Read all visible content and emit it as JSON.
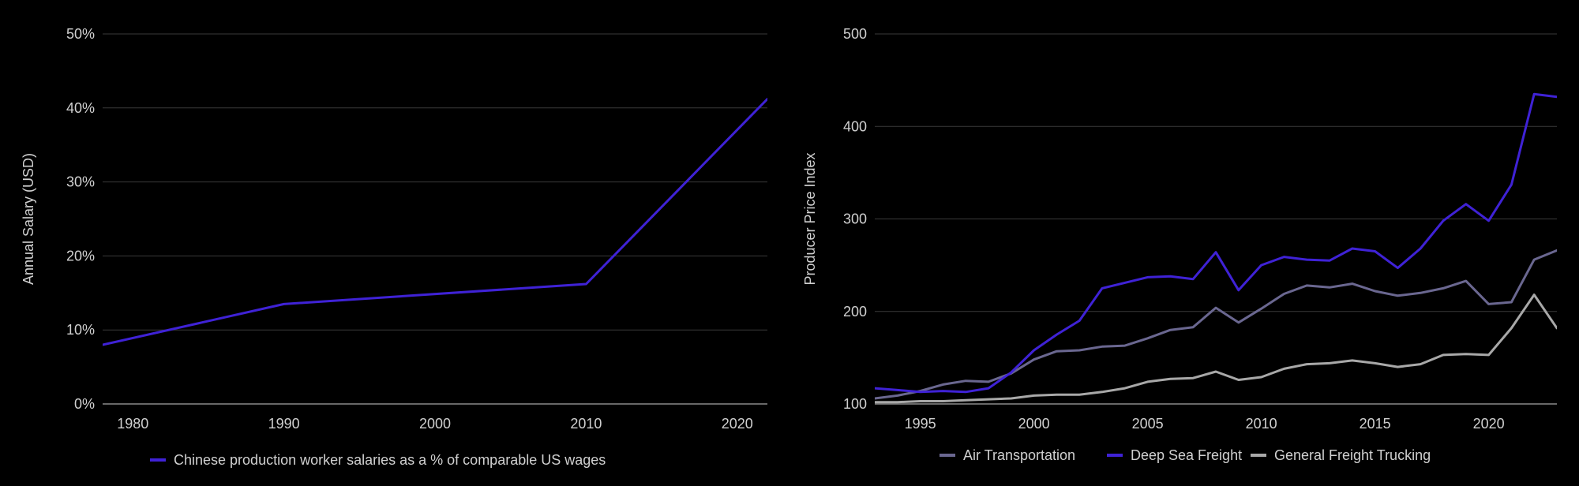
{
  "chart_data": [
    {
      "type": "line",
      "title": "",
      "xlabel": "",
      "ylabel": "Annual Salary (USD)",
      "x": [
        1978,
        1990,
        2010,
        2022
      ],
      "xlim": [
        1978,
        2022
      ],
      "ylim": [
        0,
        50
      ],
      "y_ticks": [
        "0%",
        "10%",
        "20%",
        "30%",
        "40%",
        "50%"
      ],
      "x_ticks": [
        "1980",
        "1990",
        "2000",
        "2010",
        "2020"
      ],
      "grid": true,
      "legend_position": "bottom-center",
      "series": [
        {
          "name": "Chinese production worker salaries as a % of comparable US wages",
          "color": "#3f22d6",
          "values": [
            8.0,
            13.5,
            16.2,
            41.2
          ]
        }
      ]
    },
    {
      "type": "line",
      "title": "",
      "xlabel": "",
      "ylabel": "Producer Price Index",
      "x": [
        1993,
        1994,
        1995,
        1996,
        1997,
        1998,
        1999,
        2000,
        2001,
        2002,
        2003,
        2004,
        2005,
        2006,
        2007,
        2008,
        2009,
        2010,
        2011,
        2012,
        2013,
        2014,
        2015,
        2016,
        2017,
        2018,
        2019,
        2020,
        2021,
        2022,
        2023
      ],
      "xlim": [
        1993,
        2023
      ],
      "ylim": [
        100,
        500
      ],
      "y_ticks": [
        "100",
        "200",
        "300",
        "400",
        "500"
      ],
      "x_ticks": [
        "1995",
        "2000",
        "2005",
        "2010",
        "2015",
        "2020"
      ],
      "grid": true,
      "legend_position": "bottom-center",
      "series": [
        {
          "name": "Air Transportation",
          "color": "#6a6790",
          "values": [
            106,
            109,
            114,
            121,
            125,
            124,
            133,
            148,
            157,
            158,
            162,
            163,
            171,
            180,
            183,
            204,
            188,
            203,
            219,
            228,
            226,
            230,
            222,
            217,
            220,
            225,
            233,
            208,
            210,
            256,
            266
          ]
        },
        {
          "name": "Deep Sea Freight",
          "color": "#3f22d6",
          "values": [
            117,
            115,
            113,
            114,
            113,
            117,
            134,
            158,
            175,
            190,
            225,
            231,
            237,
            238,
            235,
            264,
            223,
            250,
            259,
            256,
            255,
            268,
            265,
            247,
            268,
            298,
            316,
            298,
            337,
            435,
            432
          ]
        },
        {
          "name": "General Freight Trucking",
          "color": "#a8a8a8",
          "values": [
            102,
            102,
            103,
            103,
            104,
            105,
            106,
            109,
            110,
            110,
            113,
            117,
            124,
            127,
            128,
            135,
            126,
            129,
            138,
            143,
            144,
            147,
            144,
            140,
            143,
            153,
            154,
            153,
            182,
            218,
            182
          ]
        }
      ]
    }
  ]
}
